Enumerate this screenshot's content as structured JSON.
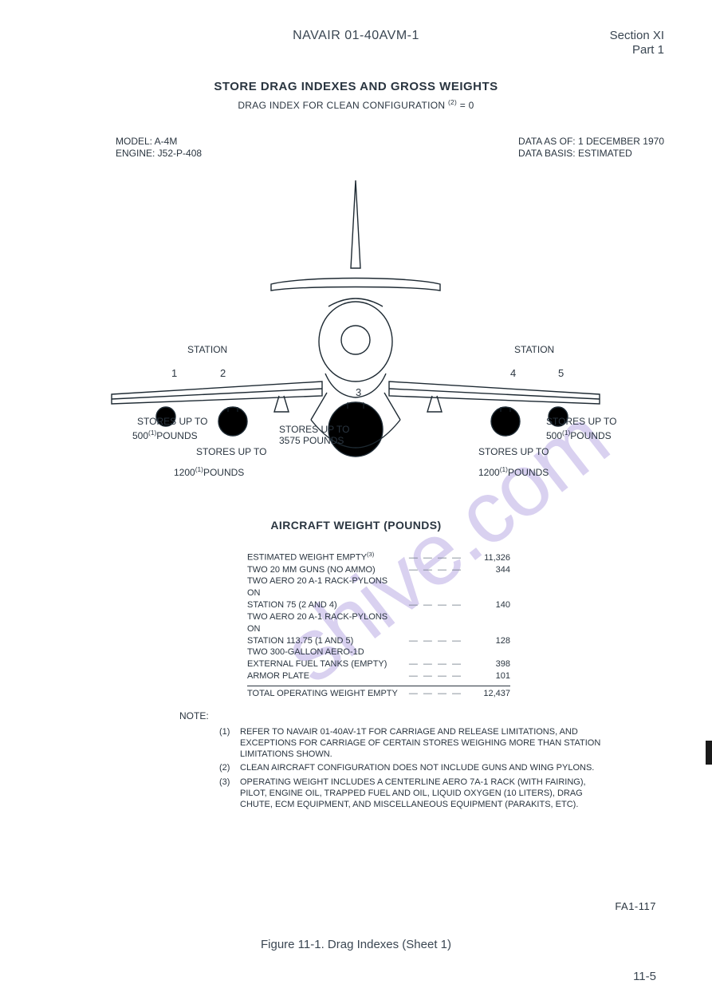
{
  "header": {
    "doc_id": "NAVAIR 01-40AVM-1",
    "section": "Section XI",
    "part": "Part 1"
  },
  "title": {
    "main": "STORE DRAG INDEXES AND GROSS WEIGHTS",
    "sub_pre": "DRAG INDEX FOR CLEAN CONFIGURATION ",
    "sub_sup": "(2)",
    "sub_post": " = 0"
  },
  "meta": {
    "model": "MODEL: A-4M",
    "engine": "ENGINE: J52-P-408",
    "data_asof": "DATA AS OF: 1 DECEMBER 1970",
    "data_basis": "DATA BASIS: ESTIMATED"
  },
  "diagram": {
    "station_label": "STATION",
    "stations": [
      "1",
      "2",
      "3",
      "4",
      "5"
    ],
    "stores": {
      "s1_line1": "STORES UP TO",
      "s1_line2_pre": "500",
      "s1_line2_sup": "(1)",
      "s1_line2_post": "POUNDS",
      "s2_line1": "STORES UP TO",
      "s2_line2_pre": "1200",
      "s2_line2_sup": "(1)",
      "s2_line2_post": "POUNDS",
      "s3_line1": "STORES UP TO",
      "s3_line2": "3575 POUNDS",
      "s4_line1": "STORES UP TO",
      "s4_line2_pre": "1200",
      "s4_line2_sup": "(1)",
      "s4_line2_post": "POUNDS",
      "s5_line1": "STORES UP TO",
      "s5_line2_pre": "500",
      "s5_line2_sup": "(1)",
      "s5_line2_post": "POUNDS"
    },
    "colors": {
      "stroke": "#1e2a33",
      "fill_dark": "#000000",
      "fill_white": "#ffffff"
    }
  },
  "weight": {
    "header": "AIRCRAFT WEIGHT (POUNDS)",
    "rows": [
      {
        "label": "ESTIMATED WEIGHT EMPTY",
        "sup": "(3)",
        "value": "11,326"
      },
      {
        "label": "TWO 20 MM GUNS (NO AMMO)",
        "value": "344"
      },
      {
        "label": "TWO AERO 20 A-1 RACK-PYLONS ON\nSTATION 75 (2 AND 4)",
        "value": "140"
      },
      {
        "label": "TWO AERO 20 A-1 RACK-PYLONS ON\nSTATION 113.75 (1 AND 5)",
        "value": "128"
      },
      {
        "label": "TWO 300-GALLON AERO-1D\nEXTERNAL FUEL TANKS (EMPTY)",
        "value": "398"
      },
      {
        "label": "ARMOR PLATE",
        "value": "101"
      }
    ],
    "total_label": "TOTAL OPERATING WEIGHT EMPTY",
    "total_value": "12,437"
  },
  "notes": {
    "header": "NOTE:",
    "items": [
      {
        "num": "(1)",
        "text": "REFER TO NAVAIR 01-40AV-1T FOR CARRIAGE AND RELEASE LIMITATIONS, AND EXCEPTIONS FOR CARRIAGE OF CERTAIN STORES WEIGHING MORE THAN STATION LIMITATIONS SHOWN."
      },
      {
        "num": "(2)",
        "text": "CLEAN AIRCRAFT CONFIGURATION DOES NOT INCLUDE GUNS AND WING PYLONS."
      },
      {
        "num": "(3)",
        "text": "OPERATING WEIGHT INCLUDES A CENTERLINE AERO 7A-1 RACK (WITH FAIRING), PILOT, ENGINE OIL, TRAPPED FUEL AND OIL, LIQUID OXYGEN (10 LITERS), DRAG CHUTE, ECM EQUIPMENT, AND MISCELLANEOUS EQUIPMENT (PARAKITS, ETC)."
      }
    ]
  },
  "figure": {
    "id": "FA1-117",
    "caption": "Figure 11-1.  Drag Indexes (Sheet 1)",
    "page_num": "11-5"
  },
  "watermark": "shive.com"
}
